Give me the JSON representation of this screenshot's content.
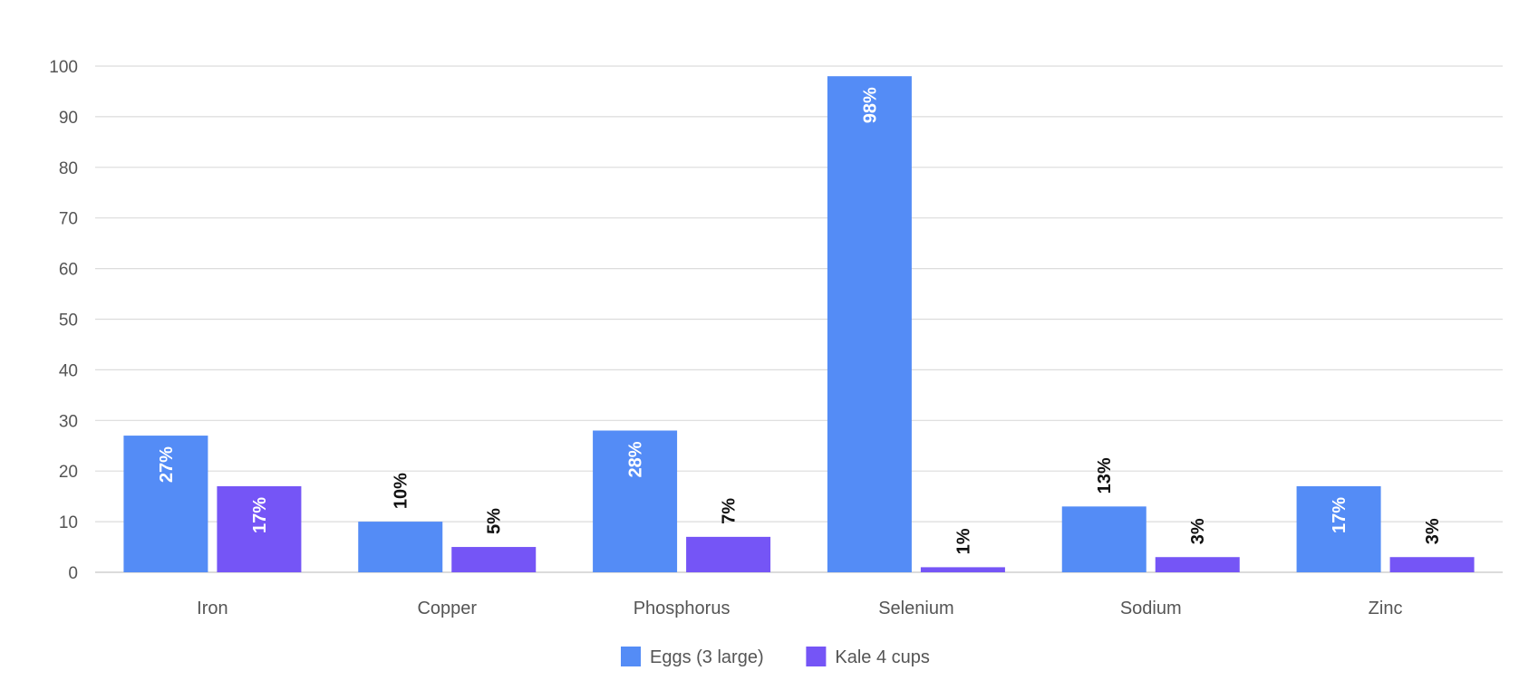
{
  "chart_data": {
    "type": "bar",
    "categories": [
      "Iron",
      "Copper",
      "Phosphorus",
      "Selenium",
      "Sodium",
      "Zinc"
    ],
    "series": [
      {
        "name": "Eggs (3 large)",
        "color": "#548cf6",
        "values": [
          27,
          10,
          28,
          98,
          13,
          17
        ],
        "labels": [
          "27%",
          "10%",
          "28%",
          "98%",
          "13%",
          "17%"
        ]
      },
      {
        "name": "Kale 4 cups",
        "color": "#7555f6",
        "values": [
          17,
          5,
          7,
          1,
          3,
          3
        ],
        "labels": [
          "17%",
          "5%",
          "7%",
          "1%",
          "3%",
          "3%"
        ]
      }
    ],
    "yticks": [
      0,
      10,
      20,
      30,
      40,
      50,
      60,
      70,
      80,
      90,
      100
    ],
    "ylim": [
      0,
      100
    ],
    "grid": true,
    "legend": "bottom-center",
    "title": "",
    "xlabel": "",
    "ylabel": ""
  }
}
